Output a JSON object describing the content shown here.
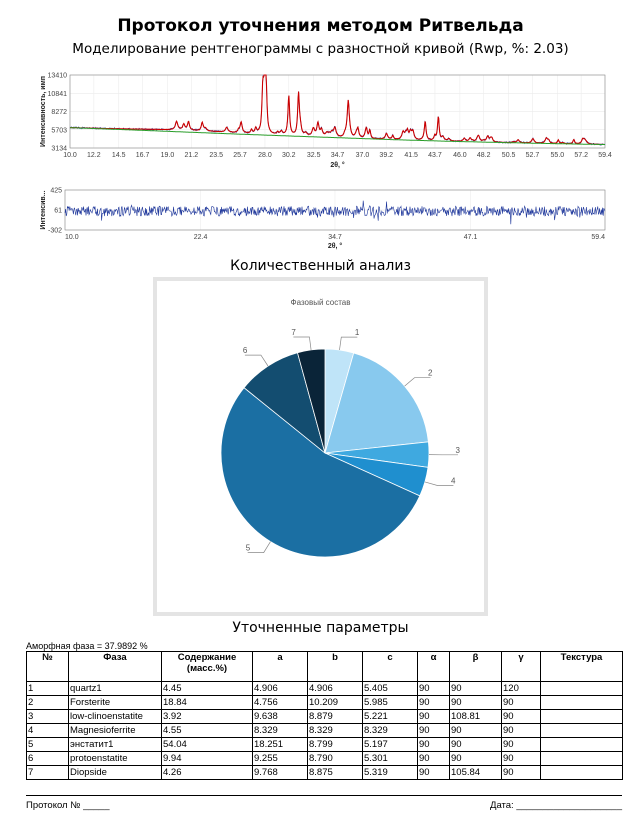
{
  "header": {
    "title": "Протокол уточнения методом Ритвельда",
    "subtitle": "Моделирование рентгенограммы с разностной кривой (Rwp, %: 2.03)"
  },
  "chart_data": [
    {
      "type": "line",
      "series": [
        {
          "name": "",
          "color": "#cc0000"
        },
        {
          "name": "",
          "color": "#1a3399"
        },
        {
          "name": "",
          "color": "#2a9d2a"
        }
      ],
      "xlabel": "2θ, °",
      "ylabel": "Интенсивность, имп",
      "xlim": [
        10.0,
        59.4
      ],
      "ylim": [
        3134,
        13410
      ],
      "xticks": [
        "10.0",
        "12.2",
        "14.5",
        "16.7",
        "19.0",
        "21.2",
        "23.5",
        "25.7",
        "28.0",
        "30.2",
        "32.5",
        "34.7",
        "37.0",
        "39.2",
        "41.5",
        "43.7",
        "46.0",
        "48.2",
        "50.5",
        "52.7",
        "55.0",
        "57.2",
        "59.4"
      ],
      "yticks": [
        "3134",
        "5703",
        "8272",
        "10841",
        "13410"
      ],
      "background": {
        "x": [
          10,
          15,
          20,
          25,
          30,
          35,
          40,
          45,
          50,
          55,
          59.4
        ],
        "y": [
          6000,
          5720,
          5420,
          5120,
          4840,
          4570,
          4300,
          4080,
          3900,
          3740,
          3620
        ]
      },
      "peaks": [
        {
          "x": 27.8,
          "y": 10300
        },
        {
          "x": 27.95,
          "y": 10900
        },
        {
          "x": 28.1,
          "y": 11700
        },
        {
          "x": 30.2,
          "y": 10400
        },
        {
          "x": 31.1,
          "y": 10700
        },
        {
          "x": 35.7,
          "y": 8600
        },
        {
          "x": 42.8,
          "y": 6700
        },
        {
          "x": 44.0,
          "y": 6500
        }
      ],
      "grid": true
    },
    {
      "type": "line",
      "series": [
        {
          "name": "",
          "color": "#1a3399"
        }
      ],
      "xlabel": "2θ, °",
      "ylabel": "Интенсив...",
      "xlim": [
        10.0,
        59.4
      ],
      "ylim": [
        -302,
        425
      ],
      "xticks": [
        "10.0",
        "22.4",
        "34.7",
        "47.1",
        "59.4"
      ],
      "yticks": [
        "-302",
        "61",
        "425"
      ],
      "noise_amplitude": 90,
      "grid": true
    },
    {
      "type": "pie",
      "title": "Фазовый состав",
      "labels": [
        "1",
        "2",
        "3",
        "4",
        "5",
        "6",
        "7"
      ],
      "values": [
        4.45,
        18.84,
        3.92,
        4.55,
        54.04,
        9.94,
        4.26
      ],
      "colors": [
        "#bfe4f8",
        "#88c9ee",
        "#3fa9e0",
        "#1f8fcf",
        "#1b6fa3",
        "#134d70",
        "#0a2438"
      ]
    }
  ],
  "quant": {
    "title": "Количественный анализ"
  },
  "params": {
    "title": "Уточненные параметры",
    "amorphous": "Аморфная фаза = 37.9892 %",
    "headers": [
      "№",
      "Фаза",
      "Содержание (масс.%)",
      "a",
      "b",
      "c",
      "α",
      "β",
      "γ",
      "Текстура"
    ],
    "rows": [
      [
        "1",
        "quartz1",
        "4.45",
        "4.906",
        "4.906",
        "5.405",
        "90",
        "90",
        "120",
        ""
      ],
      [
        "2",
        "Forsterite",
        "18.84",
        "4.756",
        "10.209",
        "5.985",
        "90",
        "90",
        "90",
        ""
      ],
      [
        "3",
        "low-clinoenstatite",
        "3.92",
        "9.638",
        "8.879",
        "5.221",
        "90",
        "108.81",
        "90",
        ""
      ],
      [
        "4",
        "Magnesioferrite",
        "4.55",
        "8.329",
        "8.329",
        "8.329",
        "90",
        "90",
        "90",
        ""
      ],
      [
        "5",
        "энстатит1",
        "54.04",
        "18.251",
        "8.799",
        "5.197",
        "90",
        "90",
        "90",
        ""
      ],
      [
        "6",
        "protoenstatite",
        "9.94",
        "9.255",
        "8.790",
        "5.301",
        "90",
        "90",
        "90",
        ""
      ],
      [
        "7",
        "Diopside",
        "4.26",
        "9.768",
        "8.875",
        "5.319",
        "90",
        "105.84",
        "90",
        ""
      ]
    ]
  },
  "footer": {
    "protocol": "Протокол № _____",
    "date": "Дата: ____________________"
  }
}
